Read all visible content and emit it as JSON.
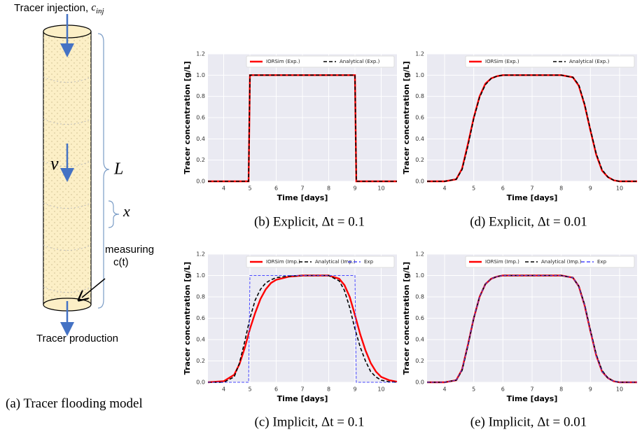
{
  "diagram": {
    "injection": "Tracer injection, ",
    "injection_symbol": "c",
    "injection_subscript": "inj",
    "velocity": "v",
    "length": "L",
    "position": "x",
    "measuring": "measuring",
    "measuring_var": "c(t)",
    "production": "Tracer production",
    "caption": "(a) Tracer flooding model"
  },
  "chart_data": [
    {
      "type": "line",
      "caption": "(b) Explicit, Δt = 0.1",
      "xlabel": "Time [days]",
      "ylabel": "Tracer concentration [g/L]",
      "xlim": [
        3.4,
        10.6
      ],
      "xticks": [
        4,
        5,
        6,
        7,
        8,
        9,
        10
      ],
      "ylim": [
        0,
        1.2
      ],
      "yticks": [
        {
          "value": 0,
          "label": "0.0"
        },
        0.2,
        0.4,
        0.6,
        0.8,
        {
          "value": 1,
          "label": "1.0"
        },
        1.2
      ],
      "grid": true,
      "legend": "top",
      "series": [
        {
          "name": "IORSim (Exp.)",
          "color": "#ff0000",
          "linestyle": "solid",
          "x": [
            3.4,
            4.95,
            5.0,
            9.0,
            9.05,
            10.6
          ],
          "values": [
            0,
            0,
            1,
            1,
            0,
            0
          ]
        },
        {
          "name": "Analytical (Exp.)",
          "color": "#000000",
          "linestyle": "dashed",
          "x": [
            3.4,
            4.95,
            5.0,
            9.0,
            9.05,
            10.6
          ],
          "values": [
            0,
            0,
            1,
            1,
            0,
            0
          ]
        }
      ]
    },
    {
      "type": "line",
      "caption": "(d) Explicit, Δt = 0.01",
      "xlabel": "Time [days]",
      "ylabel": "Tracer concentration [g/L]",
      "xlim": [
        3.4,
        10.6
      ],
      "xticks": [
        4,
        5,
        6,
        7,
        8,
        9,
        10
      ],
      "ylim": [
        0,
        1.2
      ],
      "yticks": [
        {
          "value": 0,
          "label": "0.0"
        },
        0.2,
        0.4,
        0.6,
        0.8,
        {
          "value": 1,
          "label": "1.0"
        },
        1.2
      ],
      "grid": true,
      "legend": "top",
      "series": [
        {
          "name": "IORSim (Exp.)",
          "color": "#ff0000",
          "linestyle": "solid",
          "x": [
            3.4,
            4.0,
            4.4,
            4.6,
            4.8,
            5.0,
            5.2,
            5.4,
            5.6,
            5.8,
            6.0,
            6.5,
            7,
            7.5,
            8,
            8.4,
            8.6,
            8.8,
            9.0,
            9.2,
            9.4,
            9.6,
            9.8,
            10,
            10.3,
            10.6
          ],
          "values": [
            0,
            0,
            0.02,
            0.12,
            0.35,
            0.6,
            0.8,
            0.92,
            0.97,
            0.99,
            1,
            1,
            1,
            1,
            1,
            0.98,
            0.9,
            0.72,
            0.48,
            0.25,
            0.1,
            0.04,
            0.01,
            0,
            0,
            0
          ]
        },
        {
          "name": "Analytical (Exp.)",
          "color": "#000000",
          "linestyle": "dashed",
          "x": [
            3.4,
            4.0,
            4.4,
            4.6,
            4.8,
            5.0,
            5.2,
            5.4,
            5.6,
            5.8,
            6.0,
            6.5,
            7,
            7.5,
            8,
            8.4,
            8.6,
            8.8,
            9.0,
            9.2,
            9.4,
            9.6,
            9.8,
            10,
            10.3,
            10.6
          ],
          "values": [
            0,
            0,
            0.02,
            0.11,
            0.33,
            0.59,
            0.79,
            0.91,
            0.97,
            0.99,
            1,
            1,
            1,
            1,
            1,
            0.98,
            0.91,
            0.73,
            0.49,
            0.26,
            0.11,
            0.04,
            0.01,
            0,
            0,
            0
          ]
        }
      ]
    },
    {
      "type": "line",
      "caption": "(c) Implicit, Δt = 0.1",
      "xlabel": "Time [days]",
      "ylabel": "Tracer concentration [g/L]",
      "xlim": [
        3.4,
        10.6
      ],
      "xticks": [
        4,
        5,
        6,
        7,
        8,
        9,
        10
      ],
      "ylim": [
        0,
        1.2
      ],
      "yticks": [
        {
          "value": 0,
          "label": "0.0"
        },
        0.2,
        0.4,
        0.6,
        0.8,
        {
          "value": 1,
          "label": "1.0"
        },
        1.2
      ],
      "grid": true,
      "legend": "top",
      "series": [
        {
          "name": "IORSim (Imp.)",
          "color": "#ff0000",
          "linestyle": "solid",
          "x": [
            3.4,
            4.0,
            4.4,
            4.6,
            4.8,
            5.0,
            5.2,
            5.4,
            5.6,
            5.8,
            6.0,
            6.5,
            7,
            7.5,
            8,
            8.4,
            8.6,
            8.8,
            9.0,
            9.2,
            9.4,
            9.6,
            9.8,
            10,
            10.3,
            10.6
          ],
          "values": [
            0,
            0.01,
            0.07,
            0.17,
            0.32,
            0.5,
            0.65,
            0.78,
            0.87,
            0.93,
            0.96,
            0.99,
            1,
            1,
            1,
            0.97,
            0.91,
            0.8,
            0.63,
            0.45,
            0.3,
            0.18,
            0.1,
            0.05,
            0.02,
            0.005
          ]
        },
        {
          "name": "Analytical (Imp.)",
          "color": "#000000",
          "linestyle": "dashed",
          "x": [
            3.4,
            4.0,
            4.4,
            4.6,
            4.8,
            5.0,
            5.2,
            5.4,
            5.6,
            5.8,
            6.0,
            6.5,
            7,
            7.5,
            8,
            8.4,
            8.6,
            8.8,
            9.0,
            9.2,
            9.4,
            9.6,
            9.8,
            10,
            10.3,
            10.6
          ],
          "values": [
            0,
            0,
            0.05,
            0.18,
            0.38,
            0.6,
            0.77,
            0.87,
            0.93,
            0.96,
            0.98,
            0.995,
            1,
            1,
            1,
            0.95,
            0.86,
            0.7,
            0.5,
            0.33,
            0.2,
            0.1,
            0.05,
            0.02,
            0.005,
            0
          ]
        },
        {
          "name": "Exp",
          "color": "#4a4aff",
          "linestyle": "dashed",
          "x": [
            3.4,
            4.95,
            5.0,
            9.0,
            9.05,
            10.6
          ],
          "values": [
            0,
            0,
            1,
            1,
            0,
            0
          ]
        }
      ]
    },
    {
      "type": "line",
      "caption": "(e) Implicit, Δt = 0.01",
      "xlabel": "Time [days]",
      "ylabel": "Tracer concentration [g/L]",
      "xlim": [
        3.4,
        10.6
      ],
      "xticks": [
        4,
        5,
        6,
        7,
        8,
        9,
        10
      ],
      "ylim": [
        0,
        1.2
      ],
      "yticks": [
        {
          "value": 0,
          "label": "0.0"
        },
        0.2,
        0.4,
        0.6,
        0.8,
        {
          "value": 1,
          "label": "1.0"
        },
        1.2
      ],
      "grid": true,
      "legend": "top",
      "series": [
        {
          "name": "IORSim (Imp.)",
          "color": "#ff0000",
          "linestyle": "solid",
          "x": [
            3.4,
            4.0,
            4.4,
            4.6,
            4.8,
            5.0,
            5.2,
            5.4,
            5.6,
            5.8,
            6.0,
            6.5,
            7,
            7.5,
            8,
            8.4,
            8.6,
            8.8,
            9.0,
            9.2,
            9.4,
            9.6,
            9.8,
            10,
            10.3,
            10.6
          ],
          "values": [
            0,
            0,
            0.02,
            0.12,
            0.35,
            0.6,
            0.8,
            0.92,
            0.97,
            0.99,
            1,
            1,
            1,
            1,
            1,
            0.98,
            0.9,
            0.72,
            0.48,
            0.25,
            0.1,
            0.04,
            0.01,
            0,
            0,
            0
          ]
        },
        {
          "name": "Analytical (Imp.)",
          "color": "#000000",
          "linestyle": "dashed",
          "x": [
            3.4,
            4.0,
            4.4,
            4.6,
            4.8,
            5.0,
            5.2,
            5.4,
            5.6,
            5.8,
            6.0,
            6.5,
            7,
            7.5,
            8,
            8.4,
            8.6,
            8.8,
            9.0,
            9.2,
            9.4,
            9.6,
            9.8,
            10,
            10.3,
            10.6
          ],
          "values": [
            0,
            0,
            0.02,
            0.11,
            0.34,
            0.6,
            0.8,
            0.92,
            0.97,
            0.99,
            1,
            1,
            1,
            1,
            1,
            0.98,
            0.9,
            0.73,
            0.49,
            0.26,
            0.11,
            0.04,
            0.01,
            0,
            0,
            0
          ]
        },
        {
          "name": "Exp",
          "color": "#4a4aff",
          "linestyle": "dashed",
          "x": [
            3.4,
            4.0,
            4.4,
            4.6,
            4.8,
            5.0,
            5.2,
            5.4,
            5.6,
            5.8,
            6.0,
            6.5,
            7,
            7.5,
            8,
            8.4,
            8.6,
            8.8,
            9.0,
            9.2,
            9.4,
            9.6,
            9.8,
            10,
            10.3,
            10.6
          ],
          "values": [
            0,
            0,
            0.02,
            0.12,
            0.35,
            0.6,
            0.8,
            0.92,
            0.97,
            0.99,
            1,
            1,
            1,
            1,
            1,
            0.98,
            0.9,
            0.72,
            0.48,
            0.25,
            0.1,
            0.04,
            0.01,
            0,
            0,
            0
          ]
        }
      ]
    }
  ]
}
